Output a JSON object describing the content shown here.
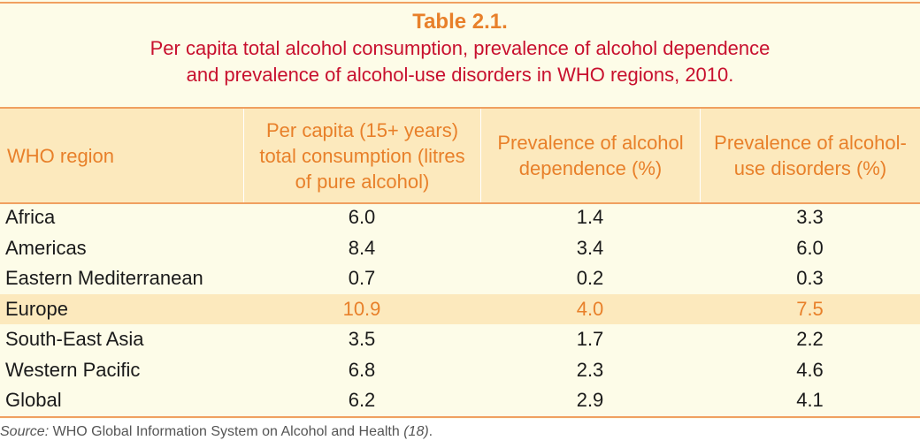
{
  "caption": {
    "number": "Table 2.1.",
    "title_line1": "Per capita total alcohol consumption, prevalence of alcohol dependence",
    "title_line2": "and prevalence of alcohol-use disorders in WHO regions, 2010."
  },
  "columns": [
    {
      "line1": "WHO region"
    },
    {
      "line1": "Per capita (15+ years)",
      "line2": "total consumption (litres",
      "line3": "of pure alcohol)"
    },
    {
      "line1": "Prevalence of alcohol",
      "line2": "dependence (%)"
    },
    {
      "line1": "Prevalence of alcohol-",
      "line2": "use disorders (%)"
    }
  ],
  "rows": [
    {
      "region": "Africa",
      "consumption": "6.0",
      "dependence": "1.4",
      "disorders": "3.3"
    },
    {
      "region": "Americas",
      "consumption": "8.4",
      "dependence": "3.4",
      "disorders": "6.0"
    },
    {
      "region": "Eastern Mediterranean",
      "consumption": "0.7",
      "dependence": "0.2",
      "disorders": "0.3"
    },
    {
      "region": "Europe",
      "consumption": "10.9",
      "dependence": "4.0",
      "disorders": "7.5"
    },
    {
      "region": "South-East Asia",
      "consumption": "3.5",
      "dependence": "1.7",
      "disorders": "2.2"
    },
    {
      "region": "Western Pacific",
      "consumption": "6.8",
      "dependence": "2.3",
      "disorders": "4.6"
    },
    {
      "region": "Global",
      "consumption": "6.2",
      "dependence": "2.9",
      "disorders": "4.1"
    }
  ],
  "source": {
    "label": "Source:",
    "text": " WHO Global Information System on Alcohol and Health ",
    "ref": "(18)",
    "end": "."
  },
  "colors": {
    "accent_orange": "#e8802a",
    "title_red": "#c8102e",
    "header_bg": "#fce9bd",
    "table_bg": "#fdfce8"
  }
}
